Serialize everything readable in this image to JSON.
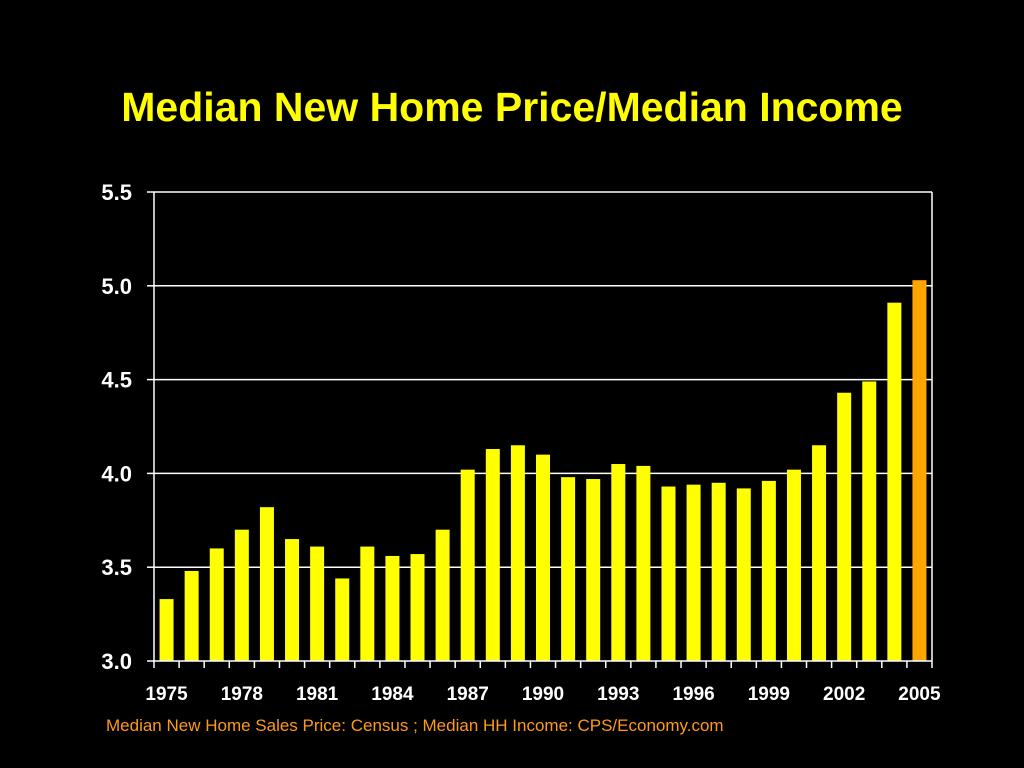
{
  "slide": {
    "title": "Median New Home Price/Median Income",
    "source_note": "Median New Home Sales Price: Census ; Median HH Income: CPS/Economy.com"
  },
  "colors": {
    "background": "#000000",
    "title": "#ffff00",
    "bar": "#ffff00",
    "highlight_bar": "#ffa500",
    "source_note": "#ff9a1a",
    "axis": "#ffffff",
    "gridline": "#ffffff"
  },
  "chart_data": {
    "type": "bar",
    "title": "Median New Home Price/Median Income",
    "xlabel": "",
    "ylabel": "",
    "categories": [
      "1975",
      "1976",
      "1977",
      "1978",
      "1979",
      "1980",
      "1981",
      "1982",
      "1983",
      "1984",
      "1985",
      "1986",
      "1987",
      "1988",
      "1989",
      "1990",
      "1991",
      "1992",
      "1993",
      "1994",
      "1995",
      "1996",
      "1997",
      "1998",
      "1999",
      "2000",
      "2001",
      "2002",
      "2003",
      "2004",
      "2005"
    ],
    "values": [
      3.33,
      3.48,
      3.6,
      3.7,
      3.82,
      3.65,
      3.61,
      3.44,
      3.61,
      3.56,
      3.57,
      3.7,
      4.02,
      4.13,
      4.15,
      4.1,
      3.98,
      3.97,
      4.05,
      4.04,
      3.93,
      3.94,
      3.95,
      3.92,
      3.96,
      4.02,
      4.15,
      4.43,
      4.49,
      4.91,
      5.03
    ],
    "highlight_category": "2005",
    "x_tick_labels": [
      "1975",
      "1978",
      "1981",
      "1984",
      "1987",
      "1990",
      "1993",
      "1996",
      "1999",
      "2002",
      "2005"
    ],
    "y_tick_labels": [
      "3.0",
      "3.5",
      "4.0",
      "4.5",
      "5.0",
      "5.5"
    ],
    "ylim": [
      3.0,
      5.5
    ],
    "grid": true,
    "legend": "none"
  }
}
